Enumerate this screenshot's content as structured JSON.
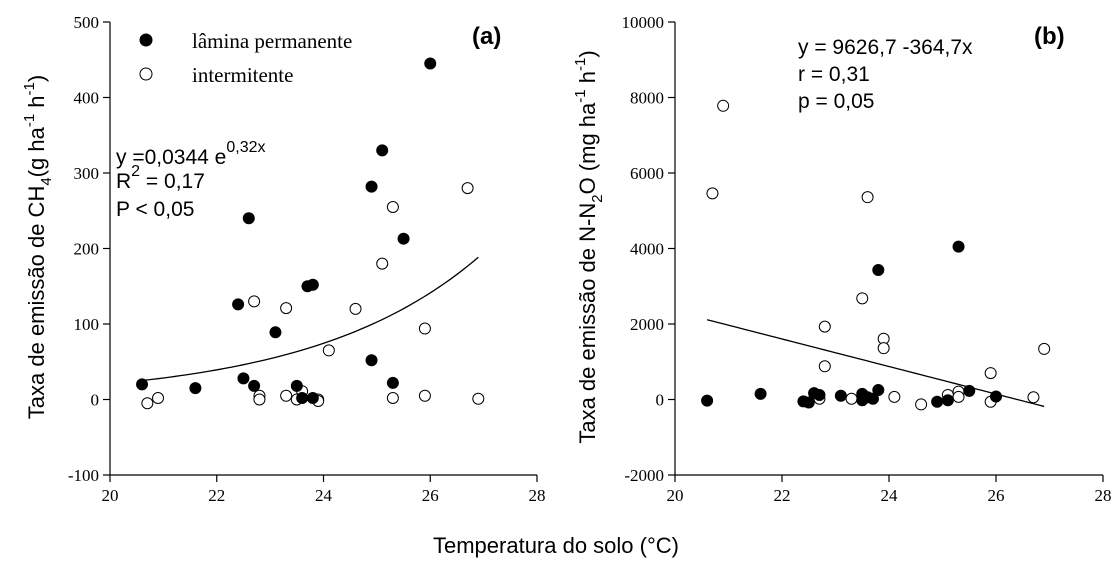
{
  "shared_xlabel": "Temperatura do solo (°C)",
  "chart_data": [
    {
      "type": "scatter",
      "panel_label": "(a)",
      "ylabel_main": "Taxa de emissão de CH",
      "ylabel_sub": "4",
      "ylabel_units": "(g ha",
      "ylabel_exp1": "-1",
      "ylabel_h": " h",
      "ylabel_exp2": "-1",
      "ylabel_close": ")",
      "xlim": [
        20,
        28
      ],
      "ylim": [
        -100,
        500
      ],
      "xticks": [
        20,
        22,
        24,
        26,
        28
      ],
      "yticks": [
        -100,
        0,
        100,
        200,
        300,
        400,
        500
      ],
      "legend": {
        "filled": "lâmina permanente",
        "open": "intermitente"
      },
      "equation": {
        "line1_prefix": "y =0,0344 e",
        "line1_exp": "0,32x",
        "line2_prefix": "R",
        "line2_exp": "2",
        "line2_suffix": " = 0,17",
        "line3": "P < 0,05"
      },
      "fit": {
        "kind": "exponential",
        "a": 0.0344,
        "b": 0.32,
        "x_range": [
          20.6,
          26.9
        ]
      },
      "series": [
        {
          "name": "lâmina permanente",
          "marker": "filled",
          "points": [
            [
              20.6,
              20
            ],
            [
              21.6,
              15
            ],
            [
              22.4,
              126
            ],
            [
              22.5,
              28
            ],
            [
              22.6,
              240
            ],
            [
              22.7,
              18
            ],
            [
              23.1,
              89
            ],
            [
              23.5,
              18
            ],
            [
              23.6,
              2
            ],
            [
              23.7,
              150
            ],
            [
              23.8,
              152
            ],
            [
              23.8,
              2
            ],
            [
              24.9,
              52
            ],
            [
              24.9,
              282
            ],
            [
              25.1,
              330
            ],
            [
              25.3,
              22
            ],
            [
              25.5,
              213
            ],
            [
              26.0,
              445
            ]
          ]
        },
        {
          "name": "intermitente",
          "marker": "open",
          "points": [
            [
              20.7,
              -5
            ],
            [
              20.9,
              2
            ],
            [
              22.7,
              130
            ],
            [
              22.8,
              5
            ],
            [
              22.8,
              0
            ],
            [
              23.3,
              5
            ],
            [
              23.3,
              121
            ],
            [
              23.5,
              0
            ],
            [
              23.6,
              11
            ],
            [
              23.9,
              0
            ],
            [
              23.9,
              -2
            ],
            [
              24.1,
              65
            ],
            [
              24.6,
              120
            ],
            [
              25.1,
              180
            ],
            [
              25.3,
              255
            ],
            [
              25.3,
              2
            ],
            [
              25.9,
              94
            ],
            [
              25.9,
              5
            ],
            [
              26.7,
              280
            ],
            [
              26.9,
              1
            ]
          ]
        }
      ]
    },
    {
      "type": "scatter",
      "panel_label": "(b)",
      "ylabel_main": "Taxa de emissão de N-N",
      "ylabel_sub": "2",
      "ylabel_units": "O (mg ha",
      "ylabel_exp1": "-1",
      "ylabel_h": " h",
      "ylabel_exp2": "-1",
      "ylabel_close": ")",
      "xlim": [
        20,
        28
      ],
      "ylim": [
        -2000,
        10000
      ],
      "xticks": [
        20,
        22,
        24,
        26,
        28
      ],
      "yticks": [
        -2000,
        0,
        2000,
        4000,
        6000,
        8000,
        10000
      ],
      "equation": {
        "line1": "y = 9626,7 -364,7x",
        "line2": "r = 0,31",
        "line3": "p = 0,05"
      },
      "fit": {
        "kind": "linear",
        "intercept": 9626.7,
        "slope": -364.7,
        "x_range": [
          20.6,
          26.9
        ]
      },
      "series": [
        {
          "name": "lâmina permanente",
          "marker": "filled",
          "points": [
            [
              20.6,
              -30
            ],
            [
              21.6,
              150
            ],
            [
              22.4,
              -50
            ],
            [
              22.5,
              -80
            ],
            [
              22.6,
              170
            ],
            [
              22.7,
              120
            ],
            [
              23.1,
              100
            ],
            [
              23.5,
              -20
            ],
            [
              23.5,
              150
            ],
            [
              23.6,
              60
            ],
            [
              23.7,
              20
            ],
            [
              23.8,
              3430
            ],
            [
              23.8,
              250
            ],
            [
              24.9,
              -60
            ],
            [
              25.1,
              -20
            ],
            [
              25.3,
              4050
            ],
            [
              25.5,
              230
            ],
            [
              26.0,
              80
            ]
          ]
        },
        {
          "name": "intermitente",
          "marker": "open",
          "points": [
            [
              20.7,
              5460
            ],
            [
              20.9,
              7780
            ],
            [
              22.7,
              20
            ],
            [
              22.8,
              1930
            ],
            [
              22.8,
              880
            ],
            [
              23.3,
              20
            ],
            [
              23.5,
              2680
            ],
            [
              23.6,
              5360
            ],
            [
              23.9,
              1610
            ],
            [
              23.9,
              1360
            ],
            [
              24.1,
              70
            ],
            [
              24.6,
              -130
            ],
            [
              25.1,
              120
            ],
            [
              25.3,
              210
            ],
            [
              25.3,
              70
            ],
            [
              25.9,
              -60
            ],
            [
              25.9,
              700
            ],
            [
              26.7,
              60
            ],
            [
              26.9,
              1340
            ]
          ]
        }
      ]
    }
  ]
}
